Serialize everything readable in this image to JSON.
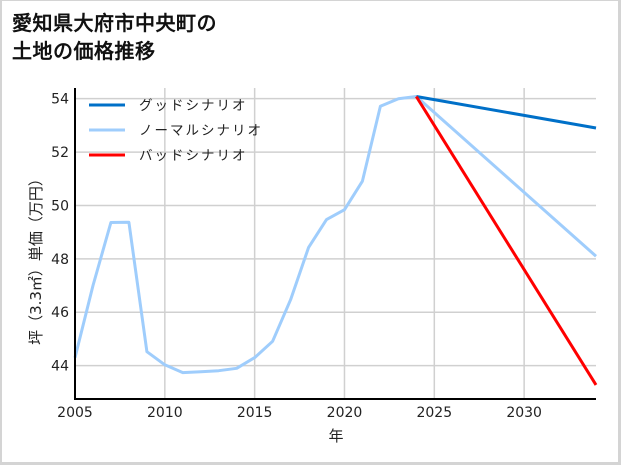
{
  "title": {
    "line1": "愛知県大府市中央町の",
    "line2": "土地の価格推移"
  },
  "colors": {
    "good": "#0070c8",
    "normal": "#9fcdfc",
    "bad": "#ff0000",
    "grid": "#d0d0d0",
    "axis": "#000000"
  },
  "chart_data": {
    "type": "line",
    "title": "愛知県大府市中央町の土地の価格推移",
    "xlabel": "年",
    "ylabel": "坪（3.3㎡）単価（万円）",
    "xlim": [
      2005,
      2034
    ],
    "ylim": [
      42.75,
      54.4
    ],
    "xticks": [
      2005,
      2010,
      2015,
      2020,
      2025,
      2030
    ],
    "yticks": [
      44,
      46,
      48,
      50,
      52,
      54
    ],
    "grid": true,
    "legend_position": "upper left",
    "historical": {
      "name": "ノーマルシナリオ",
      "x": [
        2005,
        2006,
        2007,
        2008,
        2009,
        2010,
        2011,
        2012,
        2013,
        2014,
        2015,
        2016,
        2017,
        2018,
        2019,
        2020,
        2021,
        2022,
        2023,
        2024
      ],
      "values": [
        44.3,
        47.0,
        49.36,
        49.37,
        44.52,
        44.03,
        43.74,
        43.77,
        43.81,
        43.9,
        44.3,
        44.91,
        46.47,
        48.43,
        49.47,
        49.84,
        50.91,
        53.72,
        54.0,
        54.08
      ]
    },
    "series": [
      {
        "name": "グッドシナリオ",
        "color": "#0070c8",
        "x": [
          2024,
          2034
        ],
        "values": [
          54.08,
          52.9
        ]
      },
      {
        "name": "ノーマルシナリオ",
        "color": "#9fcdfc",
        "x": [
          2024,
          2034
        ],
        "values": [
          54.08,
          48.1
        ]
      },
      {
        "name": "バッドシナリオ",
        "color": "#ff0000",
        "x": [
          2024,
          2034
        ],
        "values": [
          54.08,
          43.28
        ]
      }
    ]
  }
}
